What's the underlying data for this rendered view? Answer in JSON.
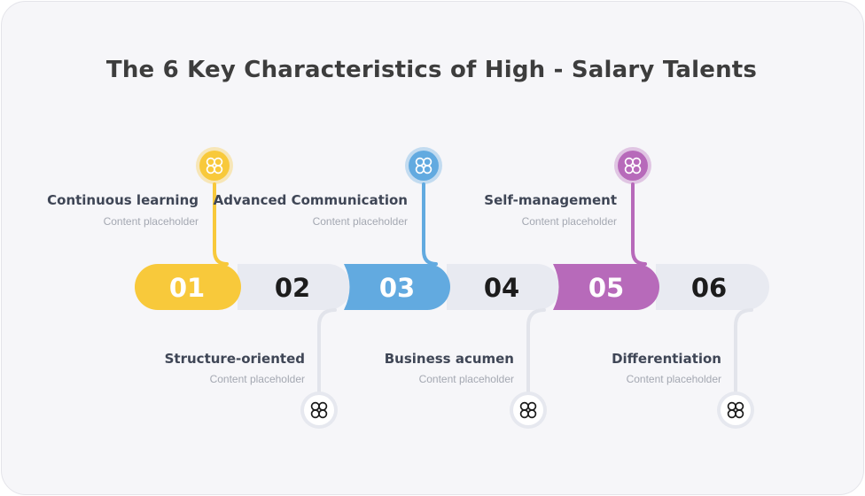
{
  "title": "The 6 Key Characteristics of High - Salary Talents",
  "colors": {
    "yellow": "#f8c93b",
    "blue": "#62aae0",
    "purple": "#b76aba",
    "grey_segment": "#e8eaf1",
    "dark": "#1c1c1c",
    "background": "#f6f6f9"
  },
  "steps": [
    {
      "number": "01",
      "title": "Continuous learning",
      "text": "Content placeholder",
      "icon": "four-petal-icon"
    },
    {
      "number": "02",
      "title": "Structure-oriented",
      "text": "Content placeholder",
      "icon": "four-petal-icon"
    },
    {
      "number": "03",
      "title": "Advanced Communication",
      "text": "Content placeholder",
      "icon": "four-petal-icon"
    },
    {
      "number": "04",
      "title": "Business acumen",
      "text": "Content placeholder",
      "icon": "four-petal-icon"
    },
    {
      "number": "05",
      "title": "Self-management",
      "text": "Content placeholder",
      "icon": "four-petal-icon"
    },
    {
      "number": "06",
      "title": "Differentiation",
      "text": "Content placeholder",
      "icon": "four-petal-icon"
    }
  ]
}
